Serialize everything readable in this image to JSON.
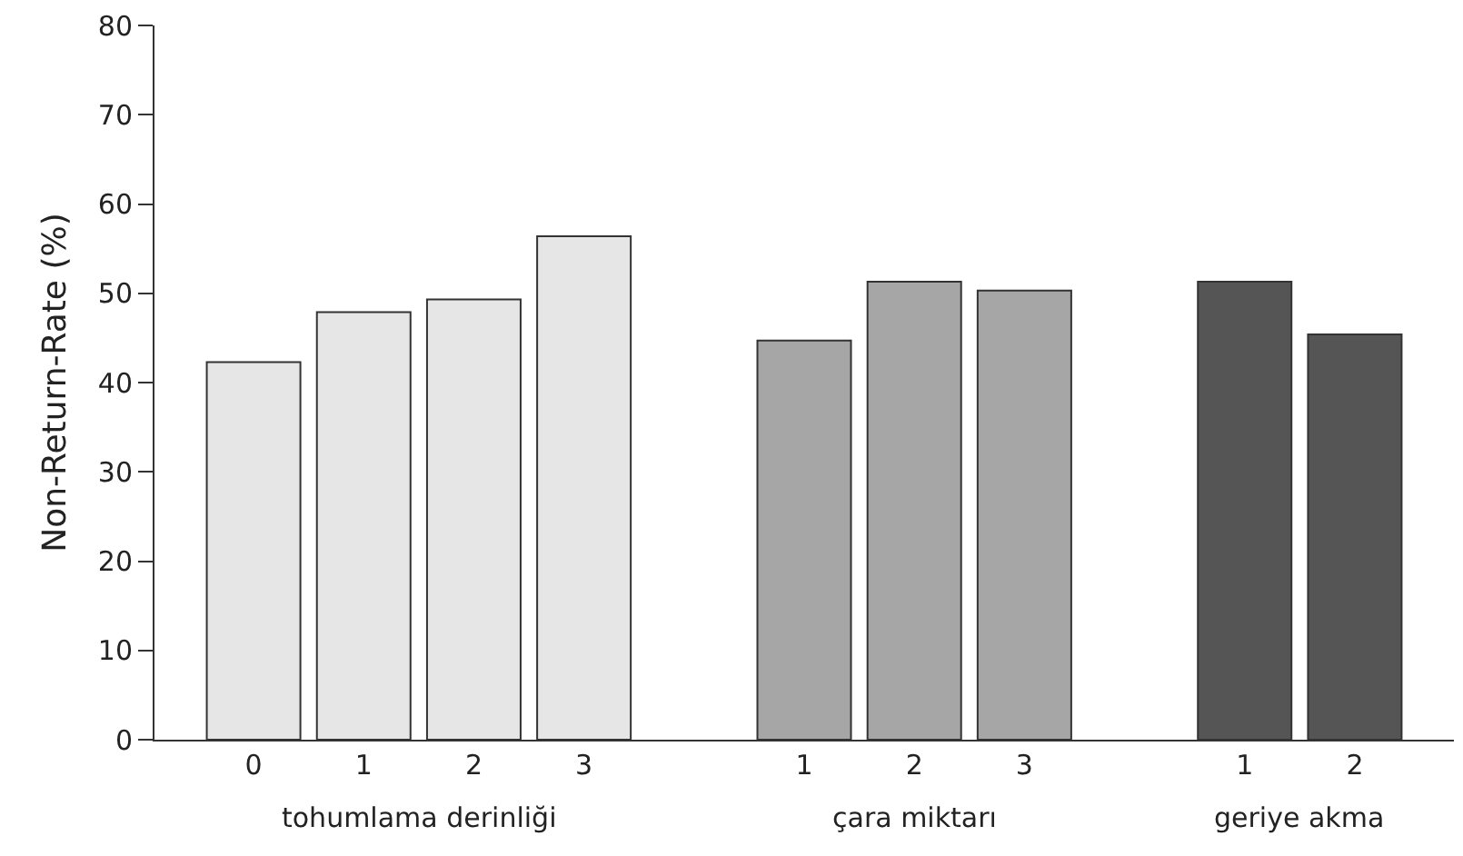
{
  "chart_data": {
    "type": "bar",
    "ylabel": "Non-Return-Rate (%)",
    "categories": [
      "0",
      "1",
      "2",
      "3",
      null,
      "1",
      "2",
      "3",
      null,
      "1",
      "2"
    ],
    "values": [
      42.3,
      47.9,
      49.3,
      56.4,
      null,
      44.7,
      51.3,
      50.3,
      null,
      51.3,
      45.4
    ],
    "colors": [
      "#e6e6e6",
      "#e6e6e6",
      "#e6e6e6",
      "#e6e6e6",
      null,
      "#a6a6a6",
      "#a6a6a6",
      "#a6a6a6",
      null,
      "#555555",
      "#555555"
    ],
    "ylim": [
      0,
      80
    ],
    "yticks": [
      0,
      10,
      20,
      30,
      40,
      50,
      60,
      70,
      80
    ],
    "grid": false,
    "annotations": [
      "tohumlama derinliği",
      "çara miktarı",
      "geriye akma"
    ]
  }
}
